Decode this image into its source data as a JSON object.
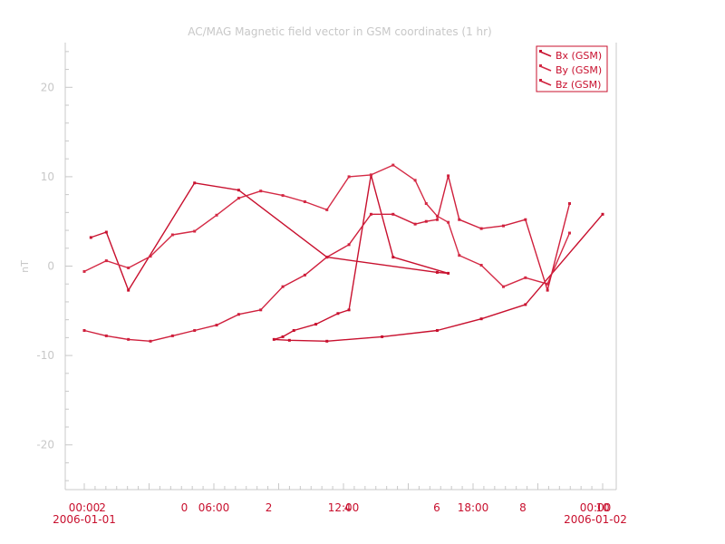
{
  "chart_data": {
    "type": "line",
    "title": "AC/MAG  Magnetic field vector in GSM coordinates (1 hr)",
    "xlabel": "",
    "ylabel": "nT",
    "ylim": [
      -25,
      25
    ],
    "yticks": [
      20,
      10,
      0,
      -10,
      -20
    ],
    "xticks": [
      {
        "label": "00:00",
        "sub": "2006-01-01",
        "pos": 0.0
      },
      {
        "label": "2",
        "pos": 0.035
      },
      {
        "label": "0",
        "pos": 0.193
      },
      {
        "label": "06:00",
        "pos": 0.25
      },
      {
        "label": "2",
        "pos": 0.356
      },
      {
        "label": "12:00",
        "pos": 0.5
      },
      {
        "label": "4",
        "pos": 0.508
      },
      {
        "label": "6",
        "pos": 0.68
      },
      {
        "label": "18:00",
        "pos": 0.75
      },
      {
        "label": "8",
        "pos": 0.846
      },
      {
        "label": "00:00",
        "sub": "2006-01-02",
        "pos": 0.986
      },
      {
        "label": "10",
        "pos": 1.0
      }
    ],
    "legend": "top-right",
    "grid": false,
    "colors": {
      "Bx": "#c8102e",
      "By": "#d42a45",
      "Bz": "#cf1f3c",
      "axis": "#c8c8c8",
      "tick_label": "#c8102e"
    },
    "series": [
      {
        "name": "Bx (GSM)",
        "color": "#c8102e",
        "x": [
          0.3,
          1.0,
          2.0,
          5.0,
          7.0,
          11.0,
          16.0,
          16.5,
          14.0,
          13.0,
          12.0,
          11.5,
          10.5,
          9.5,
          9.0,
          8.6,
          9.3,
          11.0,
          13.5,
          16.0,
          18.0,
          20.0,
          23.5
        ],
        "y": [
          3.2,
          3.8,
          -2.7,
          9.3,
          8.5,
          1.0,
          -0.7,
          -0.8,
          1.0,
          10.2,
          -4.9,
          -5.3,
          -6.5,
          -7.2,
          -7.9,
          -8.2,
          -8.3,
          -8.4,
          -7.9,
          -7.2,
          -5.9,
          -4.3,
          5.8
        ]
      },
      {
        "name": "By (GSM)",
        "color": "#d42a45",
        "x": [
          0.0,
          1.0,
          2.0,
          3.0,
          4.0,
          5.0,
          6.0,
          7.0,
          8.0,
          9.0,
          10.0,
          11.0,
          12.0,
          13.0,
          14.0,
          15.0,
          15.5,
          16.0,
          16.5,
          17.0,
          18.0,
          19.0,
          20.0,
          21.0,
          22.0
        ],
        "y": [
          -0.6,
          0.6,
          -0.2,
          1.1,
          3.5,
          3.9,
          5.7,
          7.6,
          8.4,
          7.9,
          7.2,
          6.3,
          10.0,
          10.2,
          11.3,
          9.6,
          7.0,
          5.6,
          4.9,
          1.2,
          0.1,
          -2.3,
          -1.3,
          -2.0,
          3.7
        ]
      },
      {
        "name": "Bz (GSM)",
        "color": "#cf1f3c",
        "x": [
          0.0,
          1.0,
          2.0,
          3.0,
          4.0,
          5.0,
          6.0,
          7.0,
          8.0,
          9.0,
          10.0,
          11.0,
          12.0,
          13.0,
          14.0,
          15.0,
          15.5,
          16.0,
          16.5,
          17.0,
          18.0,
          19.0,
          20.0,
          21.0,
          22.0
        ],
        "y": [
          -7.2,
          -7.8,
          -8.2,
          -8.4,
          -7.8,
          -7.2,
          -6.6,
          -5.4,
          -4.9,
          -2.3,
          -1.0,
          1.0,
          2.4,
          5.8,
          5.8,
          4.7,
          5.0,
          5.2,
          10.1,
          5.2,
          4.2,
          4.5,
          5.2,
          -2.7,
          7.0
        ]
      }
    ]
  }
}
